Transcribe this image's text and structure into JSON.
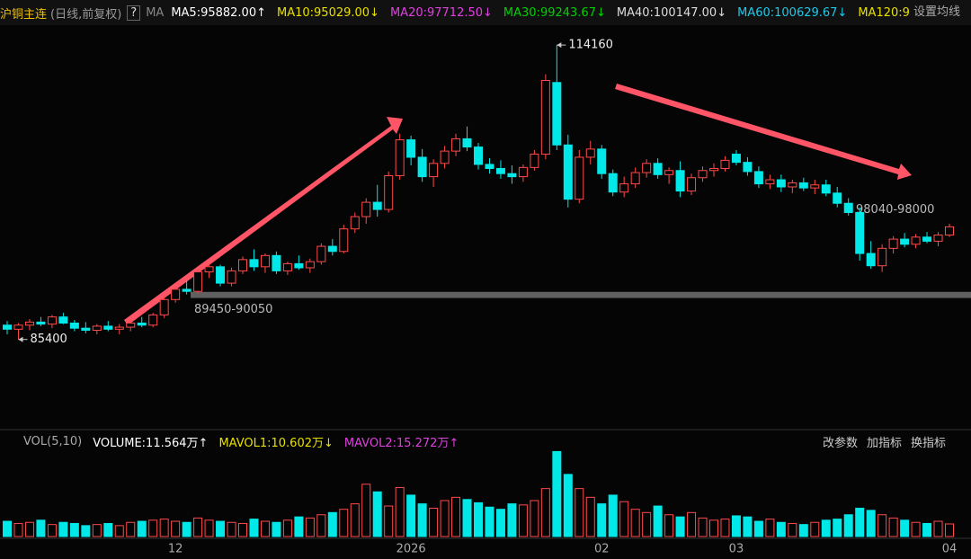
{
  "header": {
    "symbol": "沪铜主连",
    "mode": "(日线,前复权)",
    "help": "?",
    "ma_label": "MA",
    "ma_items": [
      {
        "text": "MA5:95882.00↑",
        "color": "#ffffff"
      },
      {
        "text": "MA10:95029.00↓",
        "color": "#e8e000"
      },
      {
        "text": "MA20:97712.50↓",
        "color": "#e040e0"
      },
      {
        "text": "MA30:99243.67↓",
        "color": "#00d000"
      },
      {
        "text": "MA40:100147.00↓",
        "color": "#dddddd"
      },
      {
        "text": "MA60:100629.67↓",
        "color": "#20c8e8"
      },
      {
        "text": "MA120:9",
        "color": "#e8e000"
      }
    ],
    "settings": "设置均线"
  },
  "chart_data": [
    {
      "type": "candlestick",
      "ylim": [
        77300,
        116100
      ],
      "up_color": "#ff4a4a",
      "down_color": "#00e8e8",
      "open": [
        86800,
        86400,
        86800,
        87100,
        86900,
        87600,
        87000,
        86500,
        86300,
        86700,
        86400,
        86600,
        87000,
        86800,
        87800,
        89300,
        90300,
        90100,
        92000,
        92500,
        90900,
        92100,
        93200,
        92500,
        93600,
        92100,
        92800,
        92400,
        93000,
        94500,
        94000,
        96200,
        97400,
        98800,
        98100,
        101400,
        104900,
        103200,
        101300,
        102600,
        103800,
        105000,
        104200,
        102500,
        102100,
        101600,
        101300,
        102200,
        103500,
        110500,
        104400,
        99100,
        103200,
        104000,
        101600,
        99800,
        100600,
        101700,
        102600,
        101500,
        101900,
        99900,
        101200,
        101900,
        102100,
        103500,
        102700,
        101800,
        100600,
        101000,
        100300,
        100700,
        100200,
        100500,
        99700,
        98700,
        97800,
        93800,
        92600,
        94300,
        95200,
        94700,
        95400,
        95000,
        95600
      ],
      "high": [
        87200,
        87000,
        87400,
        87600,
        87800,
        88000,
        87300,
        87100,
        86900,
        87200,
        86900,
        87300,
        87600,
        88000,
        89600,
        90600,
        91200,
        92300,
        92800,
        92700,
        92400,
        93500,
        94200,
        93800,
        94000,
        93000,
        93600,
        93300,
        94800,
        95200,
        96600,
        97800,
        99200,
        100500,
        101800,
        105500,
        105300,
        104000,
        103000,
        104300,
        105500,
        106200,
        104600,
        103100,
        102900,
        102400,
        102500,
        103900,
        111300,
        114160,
        105400,
        103900,
        104800,
        104400,
        102000,
        101300,
        102200,
        103000,
        103100,
        102200,
        102800,
        101600,
        102300,
        102600,
        103300,
        103900,
        103200,
        102300,
        101500,
        101500,
        101000,
        101200,
        101000,
        101000,
        100300,
        99200,
        98300,
        95000,
        94700,
        95500,
        95800,
        95700,
        95900,
        95900,
        96700
      ],
      "low": [
        85900,
        85400,
        86300,
        86700,
        86500,
        86900,
        86200,
        86000,
        85900,
        86200,
        85900,
        86200,
        86600,
        86600,
        87500,
        89000,
        89800,
        89900,
        91400,
        90600,
        90600,
        91800,
        92100,
        91900,
        91800,
        91700,
        92200,
        91900,
        92700,
        93600,
        93800,
        95800,
        96700,
        97400,
        97800,
        101000,
        102400,
        100800,
        100300,
        102100,
        103300,
        103800,
        102000,
        101600,
        101100,
        100600,
        100800,
        101900,
        103000,
        103900,
        98300,
        98700,
        102500,
        101100,
        99400,
        99300,
        100200,
        101200,
        101100,
        100600,
        99300,
        99500,
        100800,
        101300,
        101800,
        102400,
        101400,
        100200,
        100100,
        99800,
        99700,
        99900,
        99600,
        99400,
        98300,
        97500,
        93100,
        92300,
        92000,
        93800,
        94400,
        94300,
        94800,
        94500,
        95400
      ],
      "close": [
        86400,
        86800,
        87100,
        86900,
        87600,
        87000,
        86500,
        86300,
        86700,
        86400,
        86600,
        87000,
        86800,
        87800,
        89300,
        90300,
        90100,
        92000,
        92500,
        90900,
        92100,
        93200,
        92500,
        93600,
        92100,
        92800,
        92400,
        93000,
        94500,
        94000,
        96200,
        97400,
        98800,
        98100,
        101400,
        104900,
        103200,
        101300,
        102600,
        103800,
        105000,
        104200,
        102500,
        102100,
        101600,
        101300,
        102200,
        103500,
        110700,
        104400,
        99100,
        103200,
        104000,
        101600,
        99800,
        100600,
        101700,
        102600,
        101500,
        101900,
        99900,
        101200,
        101900,
        102100,
        102900,
        102700,
        101800,
        100600,
        101000,
        100300,
        100700,
        100200,
        100500,
        99700,
        98700,
        97800,
        93800,
        92600,
        94300,
        95200,
        94700,
        95400,
        95000,
        95600,
        96400
      ],
      "categories": [
        null,
        null,
        null,
        null,
        null,
        null,
        null,
        null,
        null,
        null,
        null,
        null,
        null,
        null,
        null,
        "12",
        null,
        null,
        null,
        null,
        null,
        null,
        null,
        null,
        null,
        null,
        null,
        null,
        null,
        null,
        null,
        null,
        null,
        null,
        null,
        null,
        "2026",
        null,
        null,
        null,
        null,
        null,
        null,
        null,
        null,
        null,
        null,
        null,
        null,
        null,
        null,
        null,
        null,
        "02",
        null,
        null,
        null,
        null,
        null,
        null,
        null,
        null,
        null,
        null,
        null,
        "03",
        null,
        null,
        null,
        null,
        null,
        null,
        null,
        null,
        null,
        null,
        null,
        null,
        null,
        null,
        null,
        null,
        null,
        null,
        "04"
      ],
      "annotations": [
        {
          "label": "114160",
          "value": 114160
        },
        {
          "label": "85400",
          "value": 85400
        }
      ],
      "zones": [
        {
          "label": "89450-90050",
          "low": 89450,
          "high": 90050,
          "band": true
        },
        {
          "label": "98040-98000",
          "low": 98000,
          "high": 98040,
          "band": false
        }
      ]
    },
    {
      "type": "bar",
      "title": "VOL(5,10)",
      "ylim": [
        0,
        80
      ],
      "items": [
        {
          "text": "VOLUME:11.564万↑",
          "color": "#ffffff"
        },
        {
          "text": "MAVOL1:10.602万↓",
          "color": "#e8e000"
        },
        {
          "text": "MAVOL2:15.272万↑",
          "color": "#e040e0"
        }
      ],
      "buttons": [
        "改参数",
        "加指标",
        "换指标"
      ],
      "values": [
        14,
        12,
        13,
        15,
        11,
        13,
        12,
        10,
        11,
        12,
        10,
        13,
        14,
        15,
        16,
        14,
        13,
        17,
        15,
        14,
        13,
        12,
        16,
        14,
        13,
        15,
        18,
        17,
        20,
        22,
        25,
        30,
        48,
        41,
        28,
        45,
        38,
        30,
        26,
        33,
        36,
        34,
        31,
        27,
        25,
        30,
        29,
        33,
        44,
        78,
        57,
        44,
        36,
        30,
        38,
        32,
        25,
        22,
        28,
        20,
        18,
        22,
        17,
        15,
        16,
        19,
        18,
        14,
        16,
        13,
        12,
        11,
        13,
        15,
        16,
        20,
        26,
        24,
        20,
        17,
        15,
        13,
        12,
        14,
        11.564
      ]
    }
  ]
}
